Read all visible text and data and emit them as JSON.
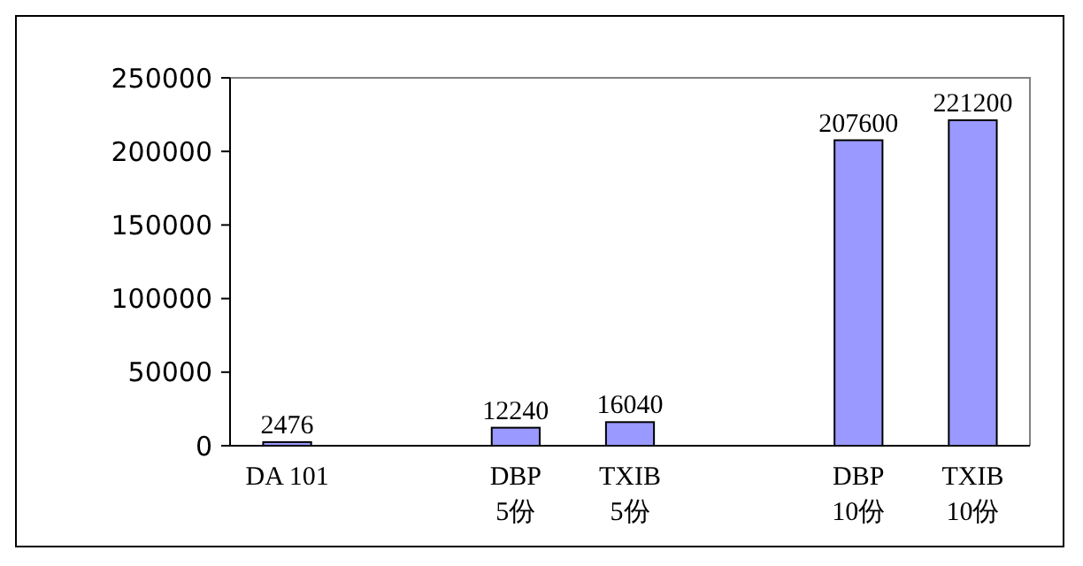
{
  "chart_data": {
    "type": "bar",
    "categories": [
      "DA 101",
      null,
      "DBP\n5份",
      "TXIB\n5份",
      null,
      "DBP\n10份",
      "TXIB\n10份"
    ],
    "values": [
      2476,
      null,
      12240,
      16040,
      null,
      207600,
      221200
    ],
    "color": "#9999ff",
    "ylim": [
      0,
      250000
    ],
    "yticks": [
      0,
      50000,
      100000,
      150000,
      200000,
      250000
    ],
    "data_labels": true,
    "grid": false
  }
}
